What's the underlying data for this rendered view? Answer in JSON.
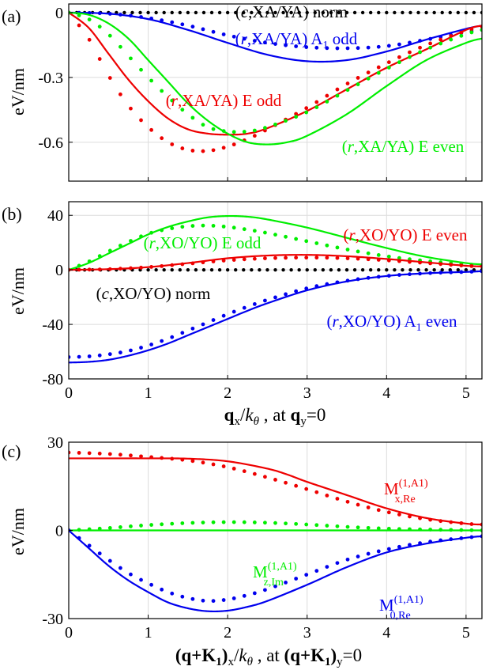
{
  "colors": {
    "black": "#000000",
    "blue": "#0000ee",
    "red": "#ee0000",
    "green": "#00ee00",
    "grid": "#dcdcdc"
  },
  "chart_data": [
    {
      "panel_label": "(a)",
      "type": "line",
      "ylabel": "eV/nm",
      "xlabel": "",
      "xlim": [
        0,
        5.2
      ],
      "ylim": [
        -0.78,
        0.04
      ],
      "xticks": [
        0,
        1,
        2,
        3,
        4,
        5
      ],
      "yticks": [
        0,
        -0.3,
        -0.6
      ],
      "ytick_labels": [
        "0",
        "-0.3",
        "-0.6"
      ],
      "show_xtick_labels": false,
      "grid": true,
      "series": [
        {
          "name": "(c,XA/YA) norm",
          "color": "black",
          "style": "dotted",
          "x": [
            0,
            5.2
          ],
          "y": [
            0,
            0
          ]
        },
        {
          "name": "(r,XA/YA) A1 odd",
          "color": "blue",
          "style": "solid",
          "x": [
            0,
            0.5,
            1,
            1.5,
            2,
            2.5,
            3,
            3.5,
            4,
            4.5,
            5,
            5.2
          ],
          "y": [
            0,
            -0.005,
            -0.03,
            -0.08,
            -0.14,
            -0.195,
            -0.225,
            -0.22,
            -0.18,
            -0.125,
            -0.075,
            -0.06
          ]
        },
        {
          "name": "(r,XA/YA) A1 odd",
          "color": "blue",
          "style": "dots",
          "x": [
            0,
            0.5,
            1,
            1.5,
            2,
            2.5,
            3,
            3.5,
            4,
            4.5,
            5,
            5.2
          ],
          "y": [
            0,
            -0.005,
            -0.025,
            -0.06,
            -0.105,
            -0.14,
            -0.16,
            -0.165,
            -0.155,
            -0.125,
            -0.09,
            -0.08
          ]
        },
        {
          "name": "(r,XA/YA) E odd",
          "color": "red",
          "style": "solid",
          "x": [
            0,
            0.25,
            0.5,
            0.75,
            1,
            1.25,
            1.5,
            1.75,
            2,
            2.25,
            2.5,
            3,
            3.5,
            4,
            4.5,
            5,
            5.2
          ],
          "y": [
            0,
            -0.07,
            -0.19,
            -0.31,
            -0.41,
            -0.49,
            -0.54,
            -0.56,
            -0.565,
            -0.56,
            -0.535,
            -0.455,
            -0.355,
            -0.255,
            -0.17,
            -0.08,
            -0.06
          ]
        },
        {
          "name": "(r,XA/YA) E odd",
          "color": "red",
          "style": "dots",
          "x": [
            0,
            0.25,
            0.5,
            0.75,
            1,
            1.25,
            1.5,
            1.75,
            2,
            2.25,
            2.5,
            3,
            3.5,
            4,
            4.5,
            5,
            5.2
          ],
          "y": [
            0,
            -0.12,
            -0.29,
            -0.43,
            -0.53,
            -0.6,
            -0.635,
            -0.64,
            -0.62,
            -0.585,
            -0.54,
            -0.44,
            -0.33,
            -0.235,
            -0.15,
            -0.085,
            -0.065
          ]
        },
        {
          "name": "(r,XA/YA) E even",
          "color": "green",
          "style": "solid",
          "x": [
            0,
            0.25,
            0.5,
            0.75,
            1,
            1.25,
            1.5,
            1.75,
            2,
            2.25,
            2.5,
            2.75,
            3,
            3.5,
            4,
            4.5,
            5,
            5.2
          ],
          "y": [
            0,
            -0.01,
            -0.05,
            -0.12,
            -0.22,
            -0.32,
            -0.42,
            -0.5,
            -0.56,
            -0.6,
            -0.61,
            -0.6,
            -0.57,
            -0.47,
            -0.34,
            -0.22,
            -0.14,
            -0.12
          ]
        },
        {
          "name": "(r,XA/YA) E even",
          "color": "green",
          "style": "dots",
          "x": [
            0,
            0.25,
            0.5,
            0.75,
            1,
            1.25,
            1.5,
            1.75,
            2,
            2.25,
            2.5,
            3,
            3.5,
            4,
            4.5,
            5,
            5.2
          ],
          "y": [
            0,
            -0.03,
            -0.1,
            -0.2,
            -0.3,
            -0.39,
            -0.47,
            -0.53,
            -0.55,
            -0.55,
            -0.53,
            -0.46,
            -0.36,
            -0.26,
            -0.17,
            -0.1,
            -0.08
          ]
        }
      ],
      "annotations": [
        {
          "text": "(c,XA/YA) norm",
          "color": "black",
          "x": 3.3,
          "y": 0.02
        },
        {
          "text": "(r,XA/YA) A1 odd",
          "color": "blue",
          "x": 3.4,
          "y": -0.085
        },
        {
          "text": "(r,XA/YA) E odd",
          "color": "red",
          "x": 2.2,
          "y": -0.44
        },
        {
          "text": "(r,XA/YA) E even",
          "color": "green",
          "x": 4.3,
          "y": -0.685
        }
      ]
    },
    {
      "panel_label": "(b)",
      "type": "line",
      "ylabel": "eV/nm",
      "xlabel": "qx/kθ , at qy=0",
      "xlim": [
        0,
        5.2
      ],
      "ylim": [
        -80,
        50
      ],
      "xticks": [
        0,
        1,
        2,
        3,
        4,
        5
      ],
      "yticks": [
        40,
        0,
        -40,
        -80
      ],
      "ytick_labels": [
        "40",
        "0",
        "-40",
        "-80"
      ],
      "show_xtick_labels": true,
      "grid": true,
      "series": [
        {
          "name": "(c,XO/YO) norm",
          "color": "black",
          "style": "dotted",
          "x": [
            0,
            5.2
          ],
          "y": [
            0,
            0
          ]
        },
        {
          "name": "(r,XO/YO) E odd",
          "color": "green",
          "style": "solid",
          "x": [
            0,
            0.25,
            0.5,
            0.75,
            1,
            1.25,
            1.5,
            1.75,
            2,
            2.25,
            2.5,
            3,
            3.5,
            4,
            4.5,
            5,
            5.2
          ],
          "y": [
            0,
            5,
            12,
            19,
            26,
            31.5,
            35.5,
            38.5,
            39.5,
            39,
            37,
            31,
            23.5,
            16,
            9.5,
            5,
            4
          ]
        },
        {
          "name": "(r,XO/YO) E odd",
          "color": "green",
          "style": "dots",
          "x": [
            0,
            0.25,
            0.5,
            0.75,
            1,
            1.25,
            1.5,
            1.75,
            2,
            2.25,
            2.5,
            3,
            3.5,
            4,
            4.5,
            5,
            5.2
          ],
          "y": [
            0,
            6,
            13.5,
            20.5,
            26.5,
            30,
            32,
            32.5,
            31.5,
            29.5,
            27,
            21,
            15,
            10,
            6.5,
            4,
            3.5
          ]
        },
        {
          "name": "(r,XO/YO) E even",
          "color": "red",
          "style": "solid",
          "x": [
            0,
            0.5,
            1,
            1.5,
            2,
            2.5,
            3,
            3.5,
            4,
            4.5,
            5,
            5.2
          ],
          "y": [
            0,
            0.5,
            2,
            5,
            8.5,
            10.5,
            11,
            10,
            8,
            5.5,
            3,
            2.5
          ]
        },
        {
          "name": "(r,XO/YO) E even",
          "color": "red",
          "style": "dots",
          "x": [
            0,
            0.5,
            1,
            1.5,
            2,
            2.5,
            3,
            3.5,
            4,
            4.5,
            5,
            5.2
          ],
          "y": [
            0,
            0.5,
            2,
            4.5,
            7,
            8.5,
            9,
            8.5,
            7,
            5,
            3,
            2.5
          ]
        },
        {
          "name": "(r,XO/YO) A1 even",
          "color": "blue",
          "style": "solid",
          "x": [
            0,
            0.25,
            0.5,
            0.75,
            1,
            1.25,
            1.5,
            1.75,
            2,
            2.25,
            2.5,
            3,
            3.5,
            4,
            4.5,
            5,
            5.2
          ],
          "y": [
            -68,
            -67.5,
            -66,
            -63,
            -59,
            -54,
            -48,
            -42,
            -36,
            -30,
            -24.5,
            -15,
            -8.5,
            -4.5,
            -2.5,
            -1.5,
            -1
          ]
        },
        {
          "name": "(r,XO/YO) A1 even",
          "color": "blue",
          "style": "dots",
          "x": [
            0,
            0.25,
            0.5,
            0.75,
            1,
            1.25,
            1.5,
            1.75,
            2,
            2.25,
            2.5,
            3,
            3.5,
            4,
            4.5,
            5,
            5.2
          ],
          "y": [
            -64,
            -63.5,
            -62,
            -59.5,
            -55.5,
            -50.5,
            -44.5,
            -38.5,
            -32.5,
            -27,
            -22,
            -13.5,
            -8,
            -4.5,
            -2.5,
            -1.5,
            -1
          ]
        }
      ],
      "annotations": [
        {
          "text": "(r,XO/YO) E odd",
          "color": "green",
          "x": 1.75,
          "y": 25.5
        },
        {
          "text": "(r,XO/YO) E even",
          "color": "red",
          "x": 4.03,
          "y": 34
        },
        {
          "text": "(c,XO/YO) norm",
          "color": "black",
          "x": 1.25,
          "y": -22
        },
        {
          "text": "(r,XO/YO) A1 even",
          "color": "blue",
          "x": 3.98,
          "y": -48.5
        }
      ]
    },
    {
      "panel_label": "(c)",
      "type": "line",
      "ylabel": "eV/nm",
      "xlabel": "(q+K1)x/kθ ,  at (q+K1)y=0",
      "xlim": [
        0,
        5.2
      ],
      "ylim": [
        -30,
        30
      ],
      "xticks": [
        0,
        1,
        2,
        3,
        4,
        5
      ],
      "yticks": [
        30,
        0,
        -30
      ],
      "ytick_labels": [
        "30",
        "0",
        "-30"
      ],
      "show_xtick_labels": true,
      "grid": true,
      "series": [
        {
          "name": "M(1,A1) x,Re",
          "color": "red",
          "style": "solid",
          "x": [
            0,
            0.5,
            1,
            1.5,
            2,
            2.5,
            2.75,
            3,
            3.5,
            4,
            4.5,
            5,
            5.2
          ],
          "y": [
            24.5,
            24.5,
            24.5,
            24.4,
            23.5,
            21,
            19,
            16.5,
            12,
            7.5,
            4.2,
            2.3,
            2
          ]
        },
        {
          "name": "M(1,A1) x,Re",
          "color": "red",
          "style": "dots",
          "x": [
            0,
            0.5,
            1,
            1.5,
            2,
            2.5,
            3,
            3.5,
            4,
            4.5,
            5,
            5.2
          ],
          "y": [
            26.5,
            26,
            25,
            23.8,
            21.5,
            18,
            14,
            9.8,
            6.3,
            3.8,
            2.3,
            2
          ]
        },
        {
          "name": "M(1,A1) z,Im",
          "color": "green",
          "style": "solid",
          "x": [
            0,
            5.2
          ],
          "y": [
            0,
            0
          ]
        },
        {
          "name": "M(1,A1) z,Im",
          "color": "green",
          "style": "dots",
          "x": [
            0,
            0.5,
            1,
            1.5,
            2,
            2.5,
            3,
            3.5,
            4,
            4.5,
            5,
            5.2
          ],
          "y": [
            0,
            0.8,
            1.8,
            2.5,
            2.8,
            2.6,
            2,
            1.2,
            0.6,
            0.3,
            0.1,
            0
          ]
        },
        {
          "name": "M(1,A1) 0,Re",
          "color": "blue",
          "style": "solid",
          "x": [
            0,
            0.25,
            0.5,
            0.75,
            1,
            1.25,
            1.5,
            1.75,
            2,
            2.25,
            2.5,
            3,
            3.5,
            4,
            4.5,
            5,
            5.2
          ],
          "y": [
            0,
            -6,
            -12,
            -17,
            -21,
            -24.5,
            -26.5,
            -27.5,
            -27.3,
            -26,
            -24,
            -18.5,
            -12.5,
            -7.5,
            -4.5,
            -2.5,
            -2
          ]
        },
        {
          "name": "M(1,A1) 0,Re",
          "color": "blue",
          "style": "dots",
          "x": [
            0,
            0.25,
            0.5,
            0.75,
            1,
            1.25,
            1.5,
            1.75,
            2,
            2.25,
            2.5,
            3,
            3.5,
            4,
            4.5,
            5,
            5.2
          ],
          "y": [
            0,
            -5,
            -10,
            -14.5,
            -18,
            -21,
            -23,
            -24,
            -23.5,
            -22,
            -20,
            -15,
            -10,
            -6.5,
            -4,
            -2.5,
            -2
          ]
        }
      ],
      "annotations": [
        {
          "text": "M(1,A1) x,Re",
          "color": "red",
          "x": 4.0,
          "y": 14
        },
        {
          "text": "M(1,A1) z,Im",
          "color": "green",
          "x": 3.0,
          "y": -9
        },
        {
          "text": "M(1,A1) 0,Re",
          "color": "blue",
          "x": 4.15,
          "y": -20
        }
      ]
    }
  ]
}
